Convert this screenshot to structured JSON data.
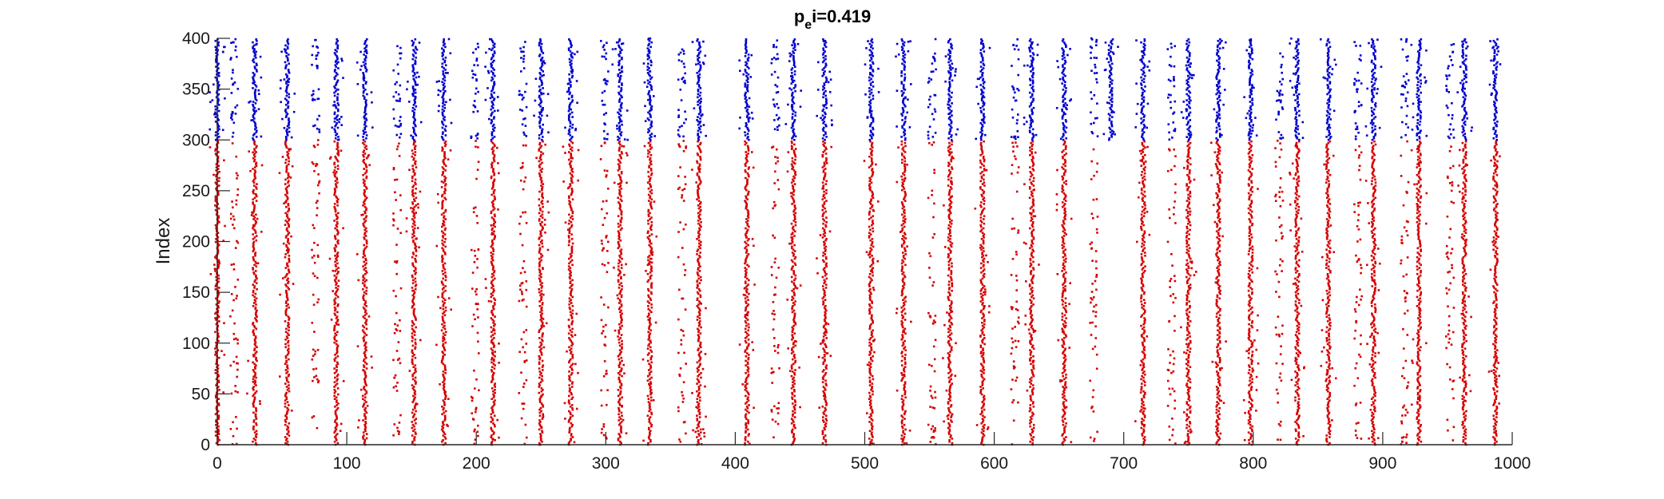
{
  "chart_data": {
    "type": "scatter",
    "title": "p",
    "title_sub": "e",
    "title_suffix": "i=0.419",
    "xlabel": "",
    "ylabel": "Index",
    "xlim": [
      0,
      1000
    ],
    "ylim": [
      0,
      400
    ],
    "xticks": [
      0,
      100,
      200,
      300,
      400,
      500,
      600,
      700,
      800,
      900,
      1000
    ],
    "yticks": [
      0,
      50,
      100,
      150,
      200,
      250,
      300,
      350,
      400
    ],
    "grid": false,
    "legend": "none",
    "population_boundary": 300,
    "series": [
      {
        "color": "#d40000",
        "index_range": [
          0,
          300
        ],
        "burst_times": [
          0,
          29,
          54,
          92,
          114,
          152,
          175,
          213,
          250,
          273,
          311,
          334,
          372,
          409,
          445,
          469,
          505,
          530,
          566,
          591,
          629,
          654,
          715,
          750,
          773,
          798,
          834,
          858,
          893,
          928,
          963,
          987
        ],
        "sparse_times": [
          13,
          76,
          139,
          199,
          236,
          299,
          359,
          431,
          552,
          616,
          677,
          737,
          820,
          881,
          917,
          952
        ]
      },
      {
        "color": "#0000cc",
        "index_range": [
          300,
          400
        ],
        "burst_times": [
          0,
          29,
          54,
          92,
          114,
          152,
          175,
          213,
          250,
          273,
          311,
          334,
          372,
          409,
          445,
          469,
          505,
          530,
          566,
          591,
          629,
          654,
          690,
          715,
          750,
          773,
          798,
          834,
          858,
          893,
          928,
          963,
          987
        ],
        "sparse_times": [
          13,
          76,
          139,
          199,
          236,
          299,
          359,
          431,
          552,
          616,
          677,
          737,
          820,
          881,
          917,
          952
        ]
      }
    ]
  }
}
